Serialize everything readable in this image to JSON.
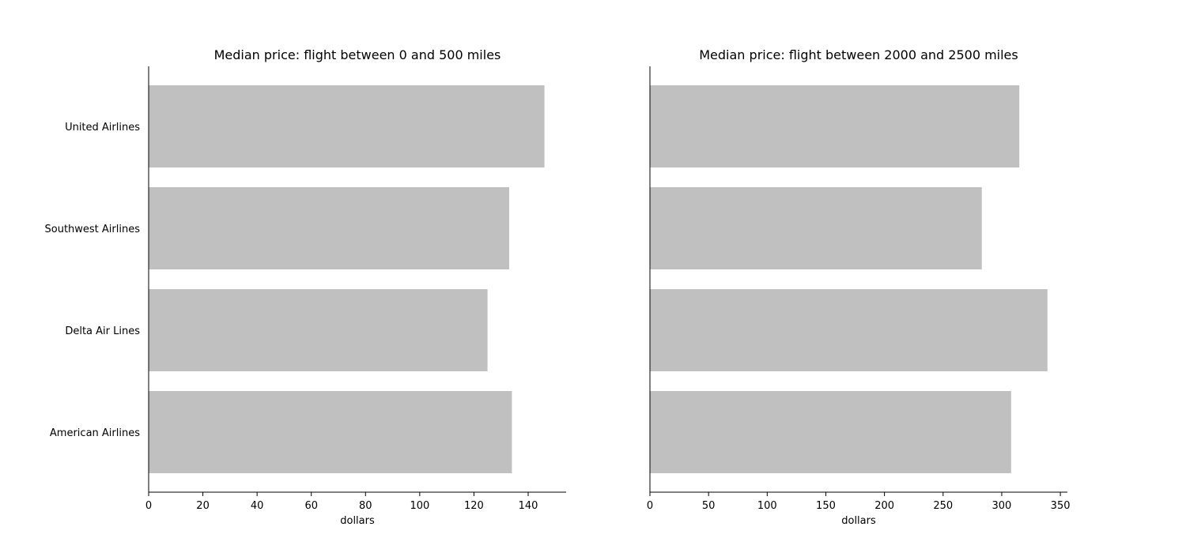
{
  "chart_data": [
    {
      "type": "bar",
      "orientation": "horizontal",
      "title": "Median price: flight between 0 and 500 miles",
      "xlabel": "dollars",
      "ylabel": "",
      "categories": [
        "United Airlines",
        "Southwest Airlines",
        "Delta Air Lines",
        "American Airlines"
      ],
      "values": [
        146,
        133,
        125,
        134
      ],
      "xlim": [
        0,
        154
      ],
      "xticks": [
        0,
        20,
        40,
        60,
        80,
        100,
        120,
        140
      ],
      "bar_color": "#c0c0c0",
      "grid": false,
      "legend": "none"
    },
    {
      "type": "bar",
      "orientation": "horizontal",
      "title": "Median price: flight between 2000 and 2500 miles",
      "xlabel": "dollars",
      "ylabel": "",
      "categories": [
        "United Airlines",
        "Southwest Airlines",
        "Delta Air Lines",
        "American Airlines"
      ],
      "values": [
        315,
        283,
        339,
        308
      ],
      "xlim": [
        0,
        356
      ],
      "xticks": [
        0,
        50,
        100,
        150,
        200,
        250,
        300,
        350
      ],
      "show_category_labels": false,
      "bar_color": "#c0c0c0",
      "grid": false,
      "legend": "none"
    }
  ]
}
